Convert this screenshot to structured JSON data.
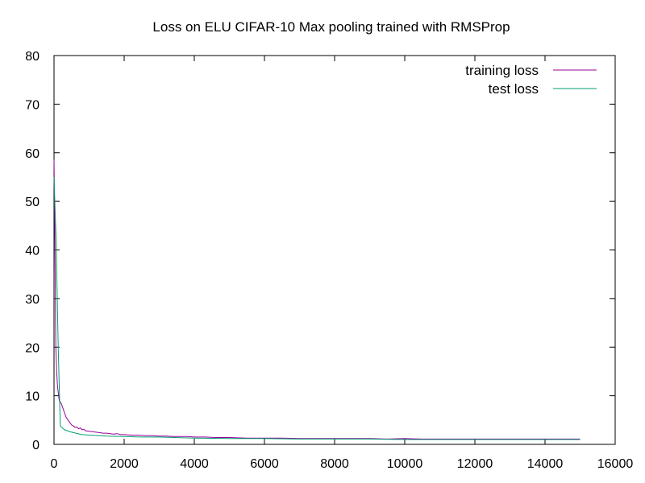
{
  "chart_data": {
    "type": "line",
    "title": "Loss on ELU CIFAR-10 Max pooling trained with RMSProp",
    "xlabel": "",
    "ylabel": "",
    "xlim": [
      0,
      16000
    ],
    "ylim": [
      0,
      80
    ],
    "x_ticks": [
      "0",
      "2000",
      "4000",
      "6000",
      "8000",
      "10000",
      "12000",
      "14000",
      "16000"
    ],
    "y_ticks": [
      "0",
      "10",
      "20",
      "30",
      "40",
      "50",
      "60",
      "70",
      "80"
    ],
    "grid": false,
    "legend_position": "top-right",
    "series": [
      {
        "name": "training loss",
        "color": "#990099",
        "x": [
          0,
          25,
          50,
          75,
          100,
          150,
          200,
          250,
          300,
          350,
          400,
          450,
          500,
          550,
          600,
          650,
          700,
          750,
          800,
          850,
          900,
          1000,
          1100,
          1200,
          1300,
          1400,
          1500,
          1600,
          1700,
          1800,
          1900,
          2000,
          2200,
          2400,
          2600,
          2800,
          3000,
          3200,
          3400,
          3600,
          3800,
          4000,
          4300,
          4600,
          5000,
          5500,
          6000,
          6500,
          7000,
          7500,
          8000,
          8500,
          9000,
          9500,
          10000,
          10500,
          11000,
          11500,
          12000,
          12500,
          13000,
          13500,
          14000,
          14500,
          15000
        ],
        "values": [
          58.5,
          42,
          20,
          15,
          12,
          9,
          8.5,
          7.5,
          6.5,
          5.5,
          5.0,
          4.5,
          4.0,
          3.8,
          3.5,
          3.6,
          3.2,
          3.4,
          3.0,
          3.1,
          2.8,
          2.7,
          2.6,
          2.5,
          2.4,
          2.3,
          2.3,
          2.2,
          2.1,
          2.2,
          2.0,
          2.0,
          1.9,
          1.9,
          1.8,
          1.8,
          1.7,
          1.7,
          1.6,
          1.6,
          1.6,
          1.5,
          1.5,
          1.4,
          1.4,
          1.3,
          1.3,
          1.3,
          1.2,
          1.2,
          1.2,
          1.2,
          1.2,
          1.1,
          1.2,
          1.1,
          1.1,
          1.1,
          1.1,
          1.1,
          1.1,
          1.1,
          1.1,
          1.1,
          1.1
        ]
      },
      {
        "name": "test loss",
        "color": "#009e73",
        "x": [
          0,
          60,
          120,
          180,
          300,
          500,
          800,
          1000,
          1500,
          2000,
          2500,
          3000,
          4000,
          5000,
          6000,
          7000,
          8000,
          9000,
          10000,
          11000,
          12000,
          13000,
          14000,
          15000
        ],
        "values": [
          55,
          42,
          20,
          3.8,
          3.0,
          2.5,
          2.0,
          1.9,
          1.7,
          1.6,
          1.5,
          1.5,
          1.3,
          1.2,
          1.2,
          1.1,
          1.1,
          1.1,
          1.0,
          1.0,
          1.0,
          1.0,
          1.0,
          1.0
        ]
      }
    ]
  }
}
